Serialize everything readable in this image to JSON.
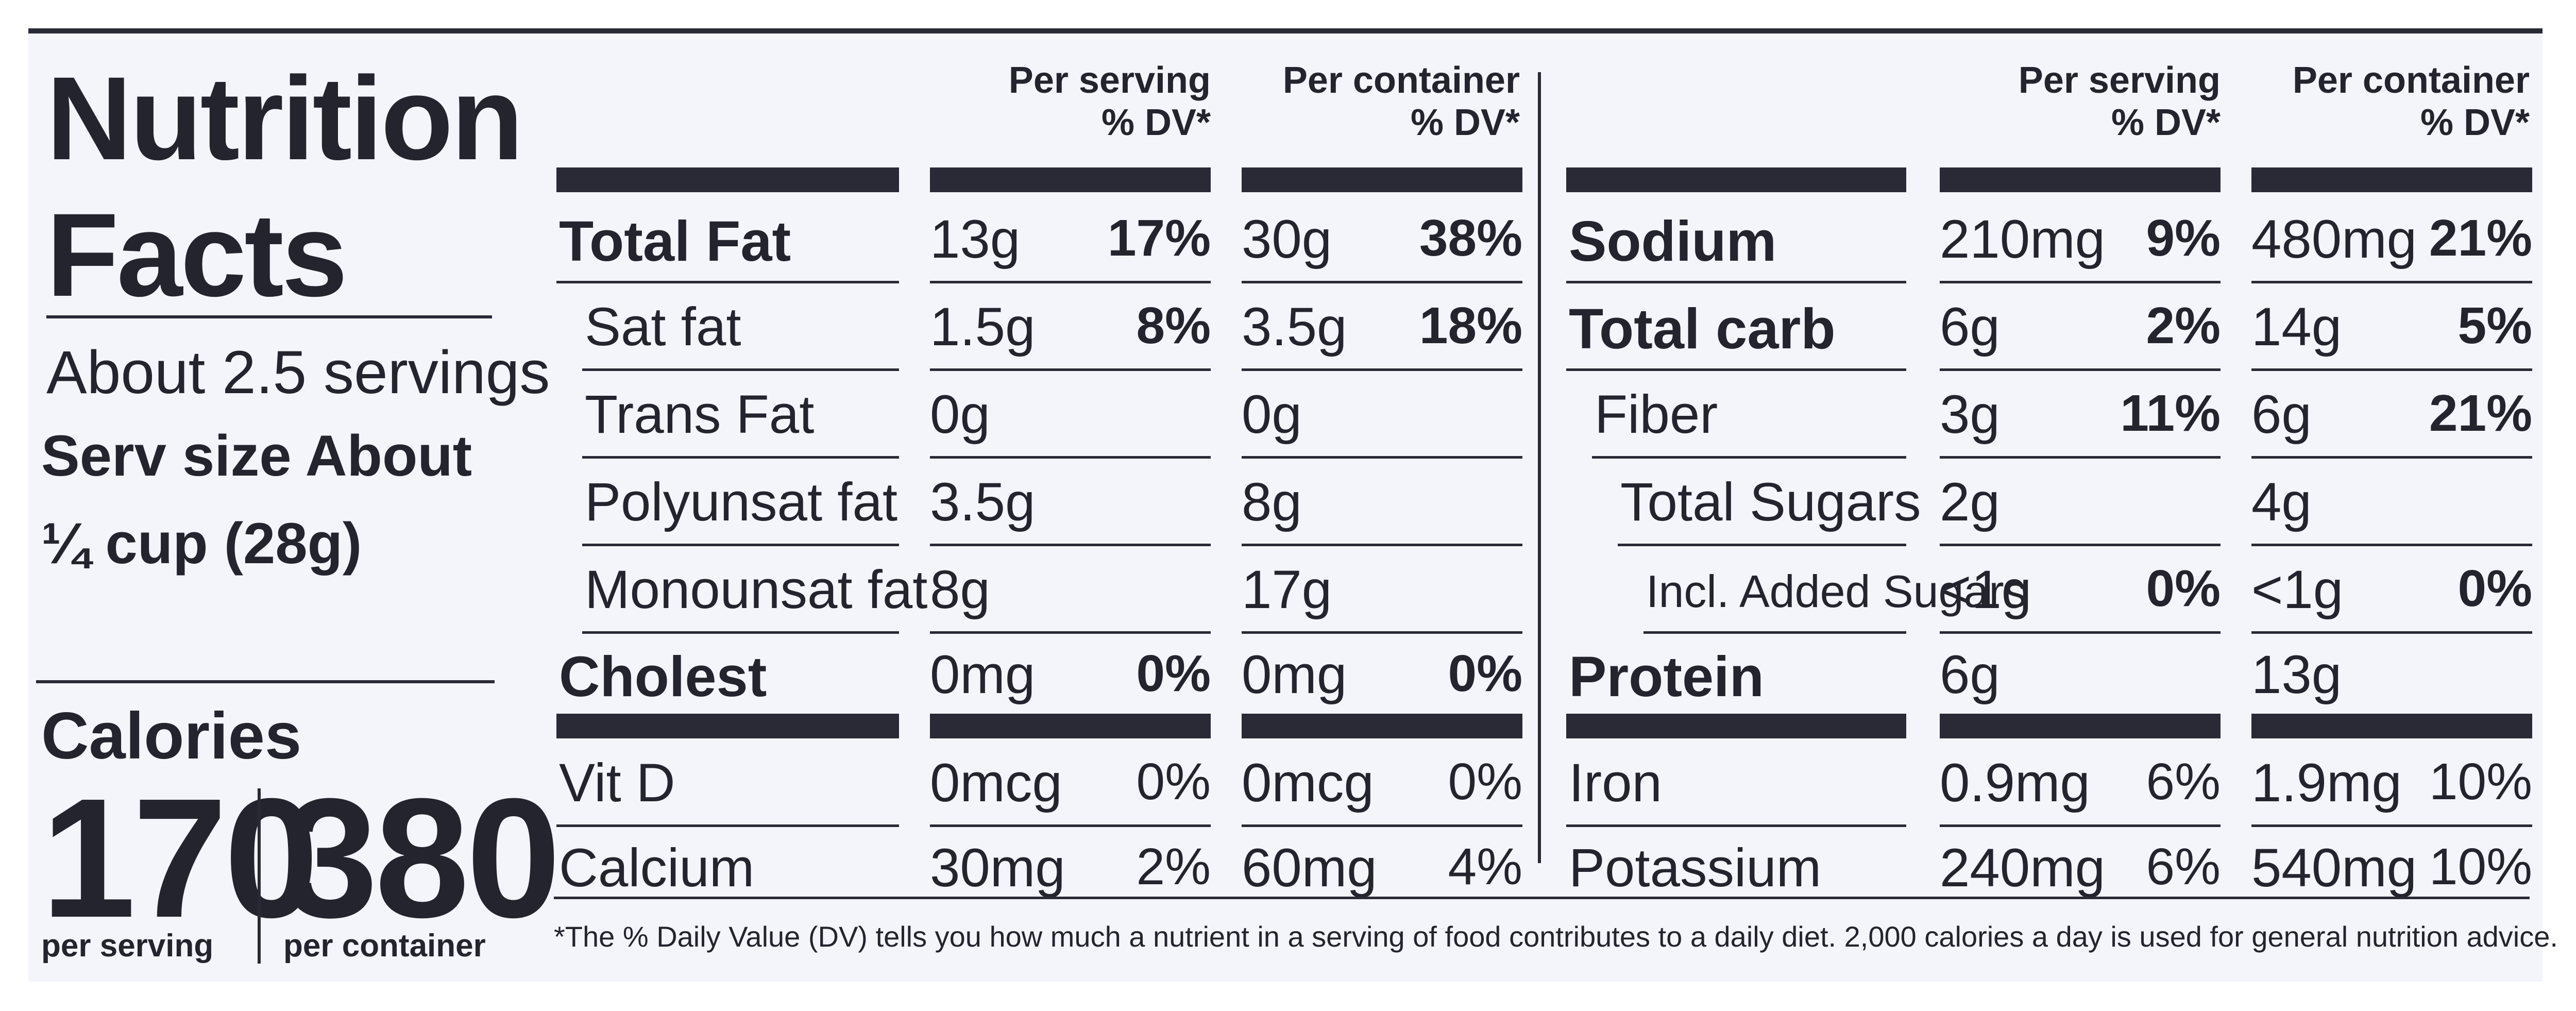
{
  "panel": {
    "title_line1": "Nutrition",
    "title_line2": "Facts",
    "servings": "About 2.5 servings",
    "serv_size_line1": "Serv size About",
    "serv_size_line2": "¼ cup (28g)",
    "calories_label": "Calories",
    "calories_serving": "170",
    "calories_container": "380",
    "per_serving_label": "per serving",
    "per_container_label": "per container"
  },
  "headers": {
    "per_serving": "Per serving",
    "per_container": "Per container",
    "dv": "% DV*"
  },
  "left_rows": [
    {
      "name": "Total Fat",
      "s_amt": "13g",
      "s_dv": "17%",
      "c_amt": "30g",
      "c_dv": "38%"
    },
    {
      "name": "Sat fat",
      "s_amt": "1.5g",
      "s_dv": "8%",
      "c_amt": "3.5g",
      "c_dv": "18%"
    },
    {
      "name": "Trans Fat",
      "s_amt": "0g",
      "s_dv": "",
      "c_amt": "0g",
      "c_dv": ""
    },
    {
      "name": "Polyunsat fat",
      "s_amt": "3.5g",
      "s_dv": "",
      "c_amt": "8g",
      "c_dv": ""
    },
    {
      "name": "Monounsat fat",
      "s_amt": "8g",
      "s_dv": "",
      "c_amt": "17g",
      "c_dv": ""
    },
    {
      "name": "Cholest",
      "s_amt": "0mg",
      "s_dv": "0%",
      "c_amt": "0mg",
      "c_dv": "0%"
    },
    {
      "name": "Vit D",
      "s_amt": "0mcg",
      "s_dv": "0%",
      "c_amt": "0mcg",
      "c_dv": "0%"
    },
    {
      "name": "Calcium",
      "s_amt": "30mg",
      "s_dv": "2%",
      "c_amt": "60mg",
      "c_dv": "4%"
    }
  ],
  "right_rows": [
    {
      "name": "Sodium",
      "s_amt": "210mg",
      "s_dv": "9%",
      "c_amt": "480mg",
      "c_dv": "21%"
    },
    {
      "name": "Total carb",
      "s_amt": "6g",
      "s_dv": "2%",
      "c_amt": "14g",
      "c_dv": "5%"
    },
    {
      "name": "Fiber",
      "s_amt": "3g",
      "s_dv": "11%",
      "c_amt": "6g",
      "c_dv": "21%"
    },
    {
      "name": "Total Sugars",
      "s_amt": "2g",
      "s_dv": "",
      "c_amt": "4g",
      "c_dv": ""
    },
    {
      "name": "Incl. Added Sugars",
      "s_amt": "<1g",
      "s_dv": "0%",
      "c_amt": "<1g",
      "c_dv": "0%"
    },
    {
      "name": "Protein",
      "s_amt": "6g",
      "s_dv": "",
      "c_amt": "13g",
      "c_dv": ""
    },
    {
      "name": "Iron",
      "s_amt": "0.9mg",
      "s_dv": "6%",
      "c_amt": "1.9mg",
      "c_dv": "10%"
    },
    {
      "name": "Potassium",
      "s_amt": "240mg",
      "s_dv": "6%",
      "c_amt": "540mg",
      "c_dv": "10%"
    }
  ],
  "footnote": "*The % Daily Value (DV) tells you how much a nutrient in a serving of food contributes to a daily diet. 2,000 calories a day is used for general nutrition advice."
}
